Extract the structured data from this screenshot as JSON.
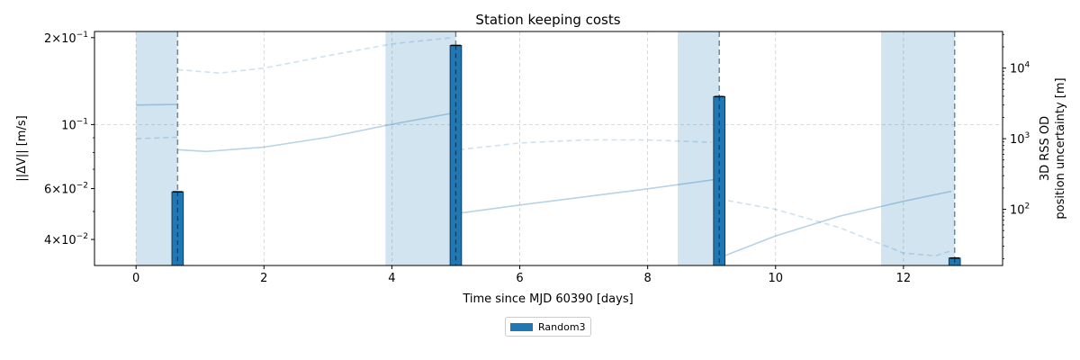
{
  "chart_data": {
    "type": "bar",
    "title": "Station keeping costs",
    "xlabel": "Time since MJD 60390 [days]",
    "ylabel": "||ΔV|| [m/s]",
    "y2label_line1": "3D RSS OD",
    "y2label_line2": "position uncertainty [m]",
    "xlim": [
      -0.65,
      13.55
    ],
    "ylim": [
      0.0325,
      0.21
    ],
    "yscale": "log",
    "y2lim": [
      16,
      33000
    ],
    "y2scale": "log",
    "grid": true,
    "x_ticks": [
      0,
      2,
      4,
      6,
      8,
      10,
      12
    ],
    "y_ticks": [
      {
        "value": 0.04,
        "mant": "4",
        "exp": "−2"
      },
      {
        "value": 0.06,
        "mant": "6",
        "exp": "−2"
      },
      {
        "value": 0.1,
        "mant": "",
        "exp": "−1"
      },
      {
        "value": 0.2,
        "mant": "2",
        "exp": "−1"
      }
    ],
    "y2_ticks": [
      {
        "value": 100,
        "exp": "2"
      },
      {
        "value": 1000,
        "exp": "3"
      },
      {
        "value": 10000,
        "exp": "4"
      }
    ],
    "series": [
      {
        "name": "Random3",
        "color": "#1f77b4",
        "bar_width_days": 0.18,
        "x": [
          0.65,
          5.0,
          9.12,
          12.8
        ],
        "values": [
          0.0585,
          0.188,
          0.125,
          0.0345
        ]
      }
    ],
    "shaded_intervals": [
      [
        0.0,
        0.65
      ],
      [
        3.9,
        5.0
      ],
      [
        8.47,
        9.12
      ],
      [
        11.65,
        12.8
      ]
    ],
    "maneuver_lines_x": [
      0.65,
      5.0,
      9.12,
      12.8
    ],
    "uncertainty_solid": [
      [
        [
          0.0,
          3000
        ],
        [
          0.65,
          3050
        ]
      ],
      [
        [
          0.65,
          700
        ],
        [
          1.1,
          660
        ],
        [
          2.0,
          760
        ],
        [
          3.0,
          1050
        ],
        [
          4.0,
          1600
        ],
        [
          4.95,
          2300
        ]
      ],
      [
        [
          5.05,
          88
        ],
        [
          6.0,
          115
        ],
        [
          7.0,
          150
        ],
        [
          8.0,
          195
        ],
        [
          8.8,
          245
        ],
        [
          9.05,
          265
        ]
      ],
      [
        [
          9.2,
          22
        ],
        [
          10.0,
          42
        ],
        [
          11.0,
          80
        ],
        [
          12.0,
          130
        ],
        [
          12.75,
          180
        ]
      ]
    ],
    "uncertainty_dashed": [
      [
        [
          0.0,
          1000
        ],
        [
          0.65,
          1050
        ]
      ],
      [
        [
          0.65,
          9500
        ],
        [
          1.3,
          8500
        ],
        [
          2.0,
          10000
        ],
        [
          3.0,
          15000
        ],
        [
          4.0,
          22000
        ],
        [
          4.95,
          27000
        ]
      ],
      [
        [
          5.05,
          700
        ],
        [
          6.0,
          870
        ],
        [
          7.0,
          960
        ],
        [
          8.0,
          960
        ],
        [
          9.0,
          890
        ]
      ],
      [
        [
          9.12,
          140
        ],
        [
          10.0,
          100
        ],
        [
          11.0,
          55
        ],
        [
          12.0,
          24
        ],
        [
          12.5,
          22
        ],
        [
          12.75,
          26
        ]
      ]
    ]
  },
  "legend": {
    "label": "Random3"
  }
}
